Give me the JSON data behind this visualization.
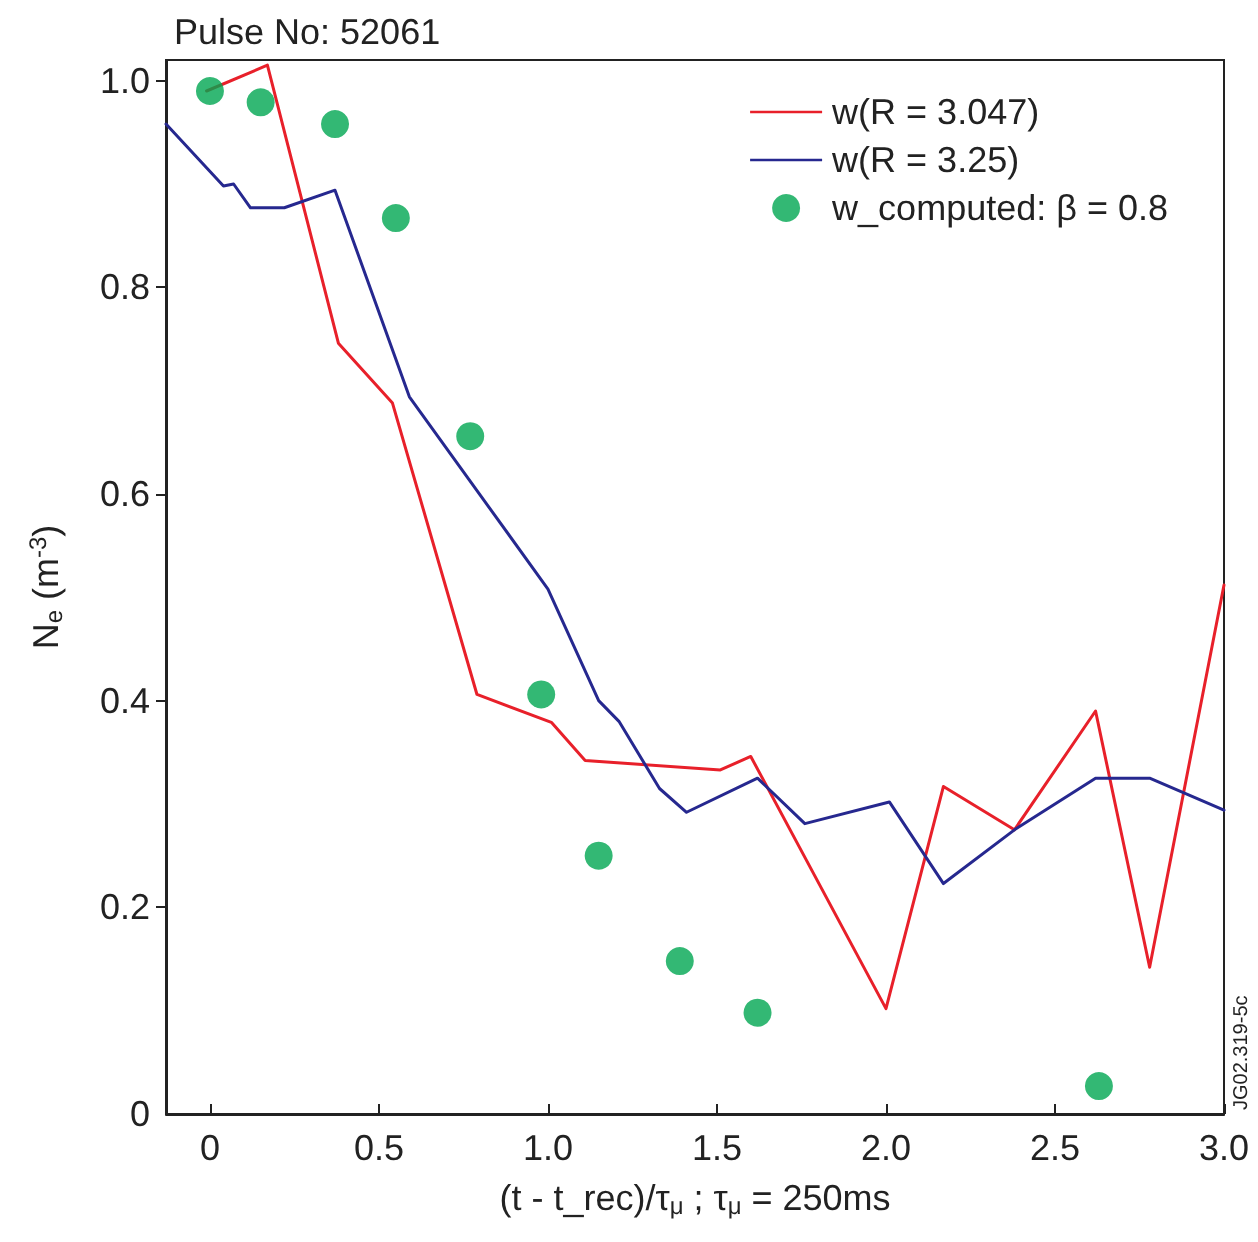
{
  "chart_data": {
    "type": "line",
    "title": "Pulse No: 52061",
    "xlabel": "(t - t_rec)/τ$_{μ}$ ; τ$_{μ}$ = 250ms",
    "ylabel": "N$_{e}$ (m$^{-3}$)",
    "annotations": [
      "JG02.319-5c"
    ],
    "xlim": [
      -0.13,
      3.0
    ],
    "xticks": [
      0,
      0.5,
      {
        "value": 1.0,
        "label": "1.0"
      },
      1.5,
      {
        "value": 2.0,
        "label": "2.0"
      },
      2.5,
      {
        "value": 3.0,
        "label": "3.0"
      }
    ],
    "ylim": [
      0,
      1.02
    ],
    "yticks": [
      0,
      0.2,
      0.4,
      0.6,
      0.8,
      {
        "value": 1.0,
        "label": "1.0"
      }
    ],
    "grid": false,
    "legend": "top right",
    "series": [
      {
        "name": "w(R = 3.047)",
        "type": "line",
        "marker": "none",
        "color": "#e8202a",
        "x": [
          -0.01,
          0.17,
          0.38,
          0.54,
          0.79,
          1.01,
          1.11,
          1.51,
          1.6,
          2.0,
          2.17,
          2.38,
          2.62,
          2.78,
          3.0
        ],
        "values": [
          0.99,
          1.015,
          0.746,
          0.688,
          0.406,
          0.379,
          0.342,
          0.333,
          0.346,
          0.102,
          0.317,
          0.275,
          0.39,
          0.142,
          0.512
        ]
      },
      {
        "name": "w(R = 3.25)",
        "type": "line",
        "marker": "none",
        "color": "#26288f",
        "x": [
          -0.13,
          0.04,
          0.07,
          0.12,
          0.22,
          0.37,
          0.59,
          1.0,
          1.15,
          1.21,
          1.33,
          1.41,
          1.62,
          1.76,
          2.01,
          2.17,
          2.38,
          2.62,
          2.78,
          3.0
        ],
        "values": [
          0.958,
          0.898,
          0.9,
          0.877,
          0.877,
          0.894,
          0.694,
          0.508,
          0.4,
          0.38,
          0.315,
          0.292,
          0.325,
          0.281,
          0.302,
          0.223,
          0.275,
          0.325,
          0.325,
          0.294
        ]
      },
      {
        "name": "w_computed: β = 0.8",
        "type": "scatter",
        "marker": "circle",
        "color": "#00a651",
        "x": [
          0,
          0.15,
          0.37,
          0.55,
          0.77,
          0.98,
          1.15,
          1.39,
          1.62,
          2.63
        ],
        "values": [
          0.99,
          0.979,
          0.958,
          0.867,
          0.656,
          0.406,
          0.25,
          0.148,
          0.098,
          0.027
        ]
      }
    ]
  }
}
